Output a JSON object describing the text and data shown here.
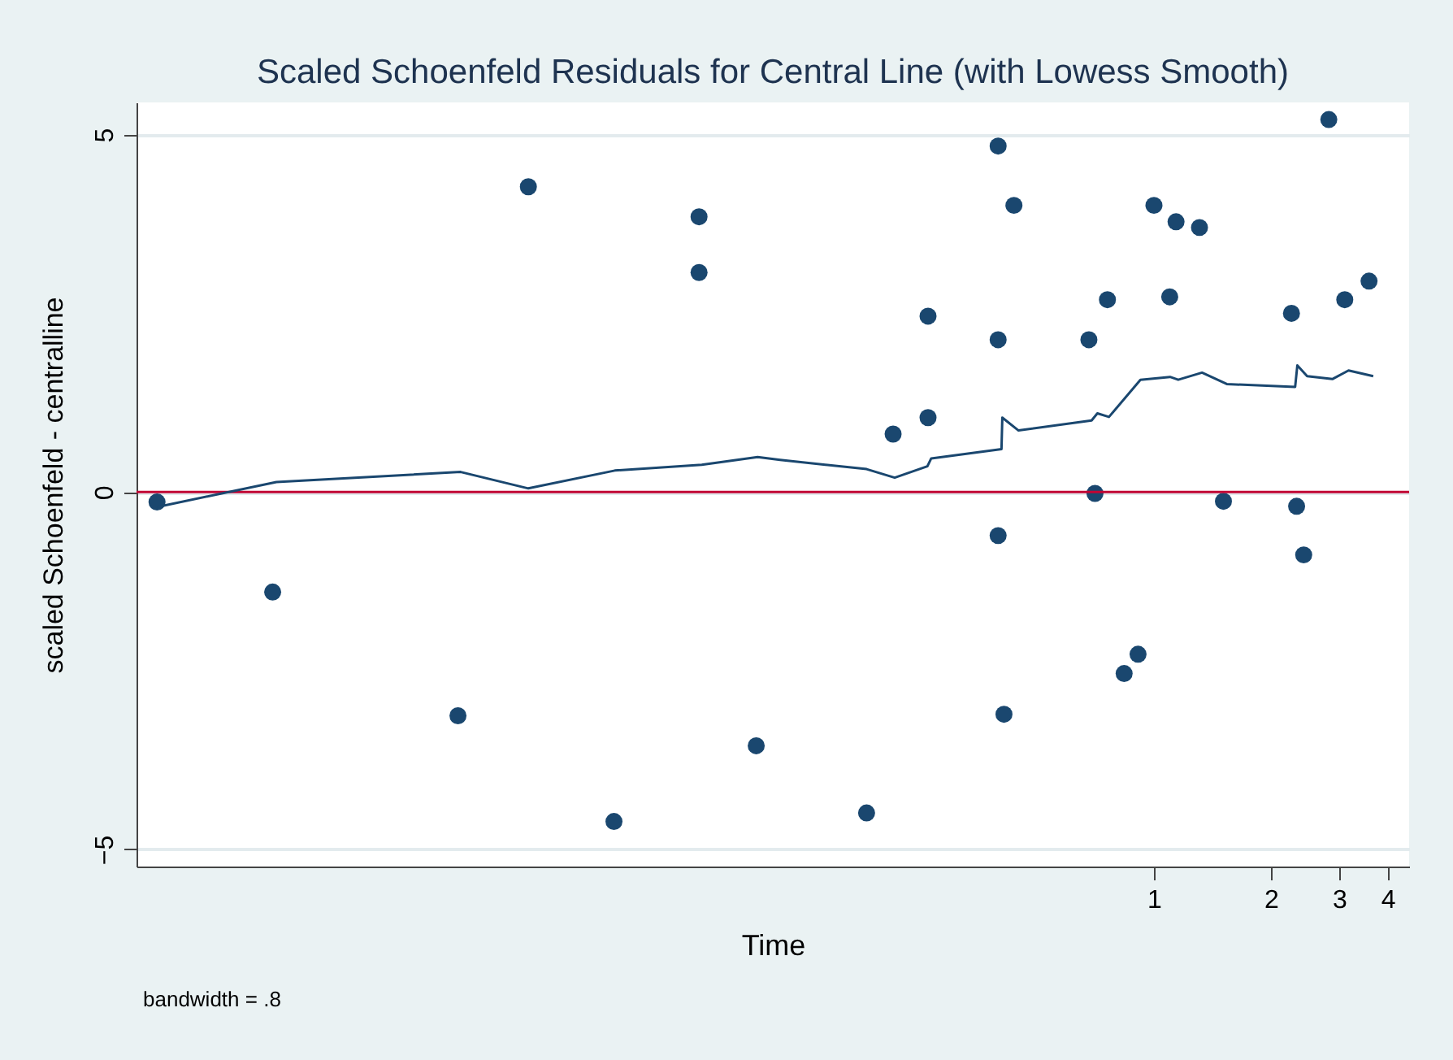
{
  "chart_data": {
    "type": "scatter",
    "title": "Scaled Schoenfeld Residuals for Central Line (with Lowess Smooth)",
    "xlabel": "Time",
    "ylabel": "scaled Schoenfeld - centralline",
    "annotations": [
      "bandwidth = .8"
    ],
    "log": "x",
    "xlim": [
      0.0024,
      4.54
    ],
    "ylim": [
      -5.24,
      5.45
    ],
    "xticks": [
      1,
      2,
      3,
      4
    ],
    "yticks": [
      -5,
      0,
      5
    ],
    "grid": "y",
    "ref_lines": [
      {
        "axis": "y",
        "value": 0,
        "color": "#c10534"
      }
    ],
    "series": [
      {
        "marker": "circle",
        "color": "#1a476f",
        "x": [
          0.00271,
          0.00538,
          0.01614,
          0.0245,
          0.0407,
          0.0674,
          0.0674,
          0.0946,
          0.182,
          0.213,
          0.262,
          0.262,
          0.397,
          0.397,
          0.397,
          0.411,
          0.436,
          0.68,
          0.705,
          0.759,
          0.838,
          0.91,
          1.0,
          1.098,
          1.14,
          1.31,
          1.51,
          2.26,
          2.33,
          2.43,
          2.82,
          3.1,
          3.58
        ],
        "values": [
          -0.14,
          -1.4,
          -3.13,
          4.27,
          -4.61,
          3.85,
          3.07,
          -3.55,
          -4.49,
          0.81,
          1.04,
          2.46,
          4.84,
          2.13,
          -0.61,
          -3.11,
          4.01,
          2.13,
          -0.02,
          2.69,
          -2.54,
          -2.27,
          4.01,
          2.73,
          3.78,
          3.7,
          -0.13,
          2.5,
          -0.2,
          -0.88,
          5.21,
          2.69,
          2.95
        ]
      },
      {
        "type": "line",
        "color": "#1a476f",
        "x": [
          0.00271,
          0.0055,
          0.0164,
          0.0245,
          0.0409,
          0.0685,
          0.0954,
          0.109,
          0.182,
          0.215,
          0.261,
          0.267,
          0.405,
          0.407,
          0.448,
          0.691,
          0.715,
          0.766,
          0.923,
          1.1,
          1.155,
          1.33,
          1.54,
          2.31,
          2.34,
          2.48,
          2.88,
          3.17,
          3.67
        ],
        "values": [
          -0.21,
          0.14,
          0.28,
          0.05,
          0.3,
          0.38,
          0.49,
          0.45,
          0.32,
          0.2,
          0.36,
          0.47,
          0.6,
          1.04,
          0.86,
          1.0,
          1.1,
          1.05,
          1.57,
          1.61,
          1.57,
          1.67,
          1.51,
          1.47,
          1.77,
          1.62,
          1.58,
          1.7,
          1.62
        ]
      }
    ]
  }
}
